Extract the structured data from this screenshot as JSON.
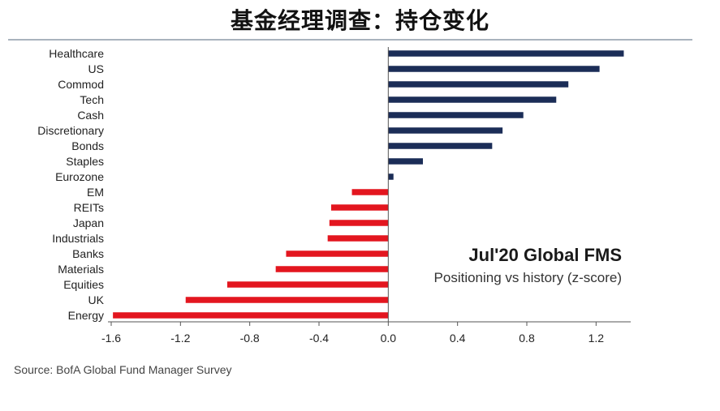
{
  "page": {
    "title": "基金经理调查：持仓变化"
  },
  "panel": {
    "title": "Jul'20 Global FMS",
    "subtitle": "Positioning vs history (z-score)"
  },
  "source": "Source: BofA Global Fund Manager Survey",
  "colors": {
    "positive": "#1b2d57",
    "negative": "#e3161f",
    "axis": "#555555"
  },
  "chart_data": {
    "type": "bar",
    "orientation": "horizontal",
    "title": "Jul'20 Global FMS",
    "subtitle": "Positioning vs history (z-score)",
    "categories": [
      "Healthcare",
      "US",
      "Commod",
      "Tech",
      "Cash",
      "Discretionary",
      "Bonds",
      "Staples",
      "Eurozone",
      "EM",
      "REITs",
      "Japan",
      "Industrials",
      "Banks",
      "Materials",
      "Equities",
      "UK",
      "Energy"
    ],
    "values": [
      1.36,
      1.22,
      1.04,
      0.97,
      0.78,
      0.66,
      0.6,
      0.2,
      0.03,
      -0.21,
      -0.33,
      -0.34,
      -0.35,
      -0.59,
      -0.65,
      -0.93,
      -1.17,
      -1.59
    ],
    "xlim": [
      -1.6,
      1.4
    ],
    "xticks": [
      -1.6,
      -1.2,
      -0.8,
      -0.4,
      0.0,
      0.4,
      0.8,
      1.2
    ],
    "xtick_labels": [
      "-1.6",
      "-1.2",
      "-0.8",
      "-0.4",
      "0.0",
      "0.4",
      "0.8",
      "1.2"
    ],
    "grid": false,
    "legend": "none"
  }
}
